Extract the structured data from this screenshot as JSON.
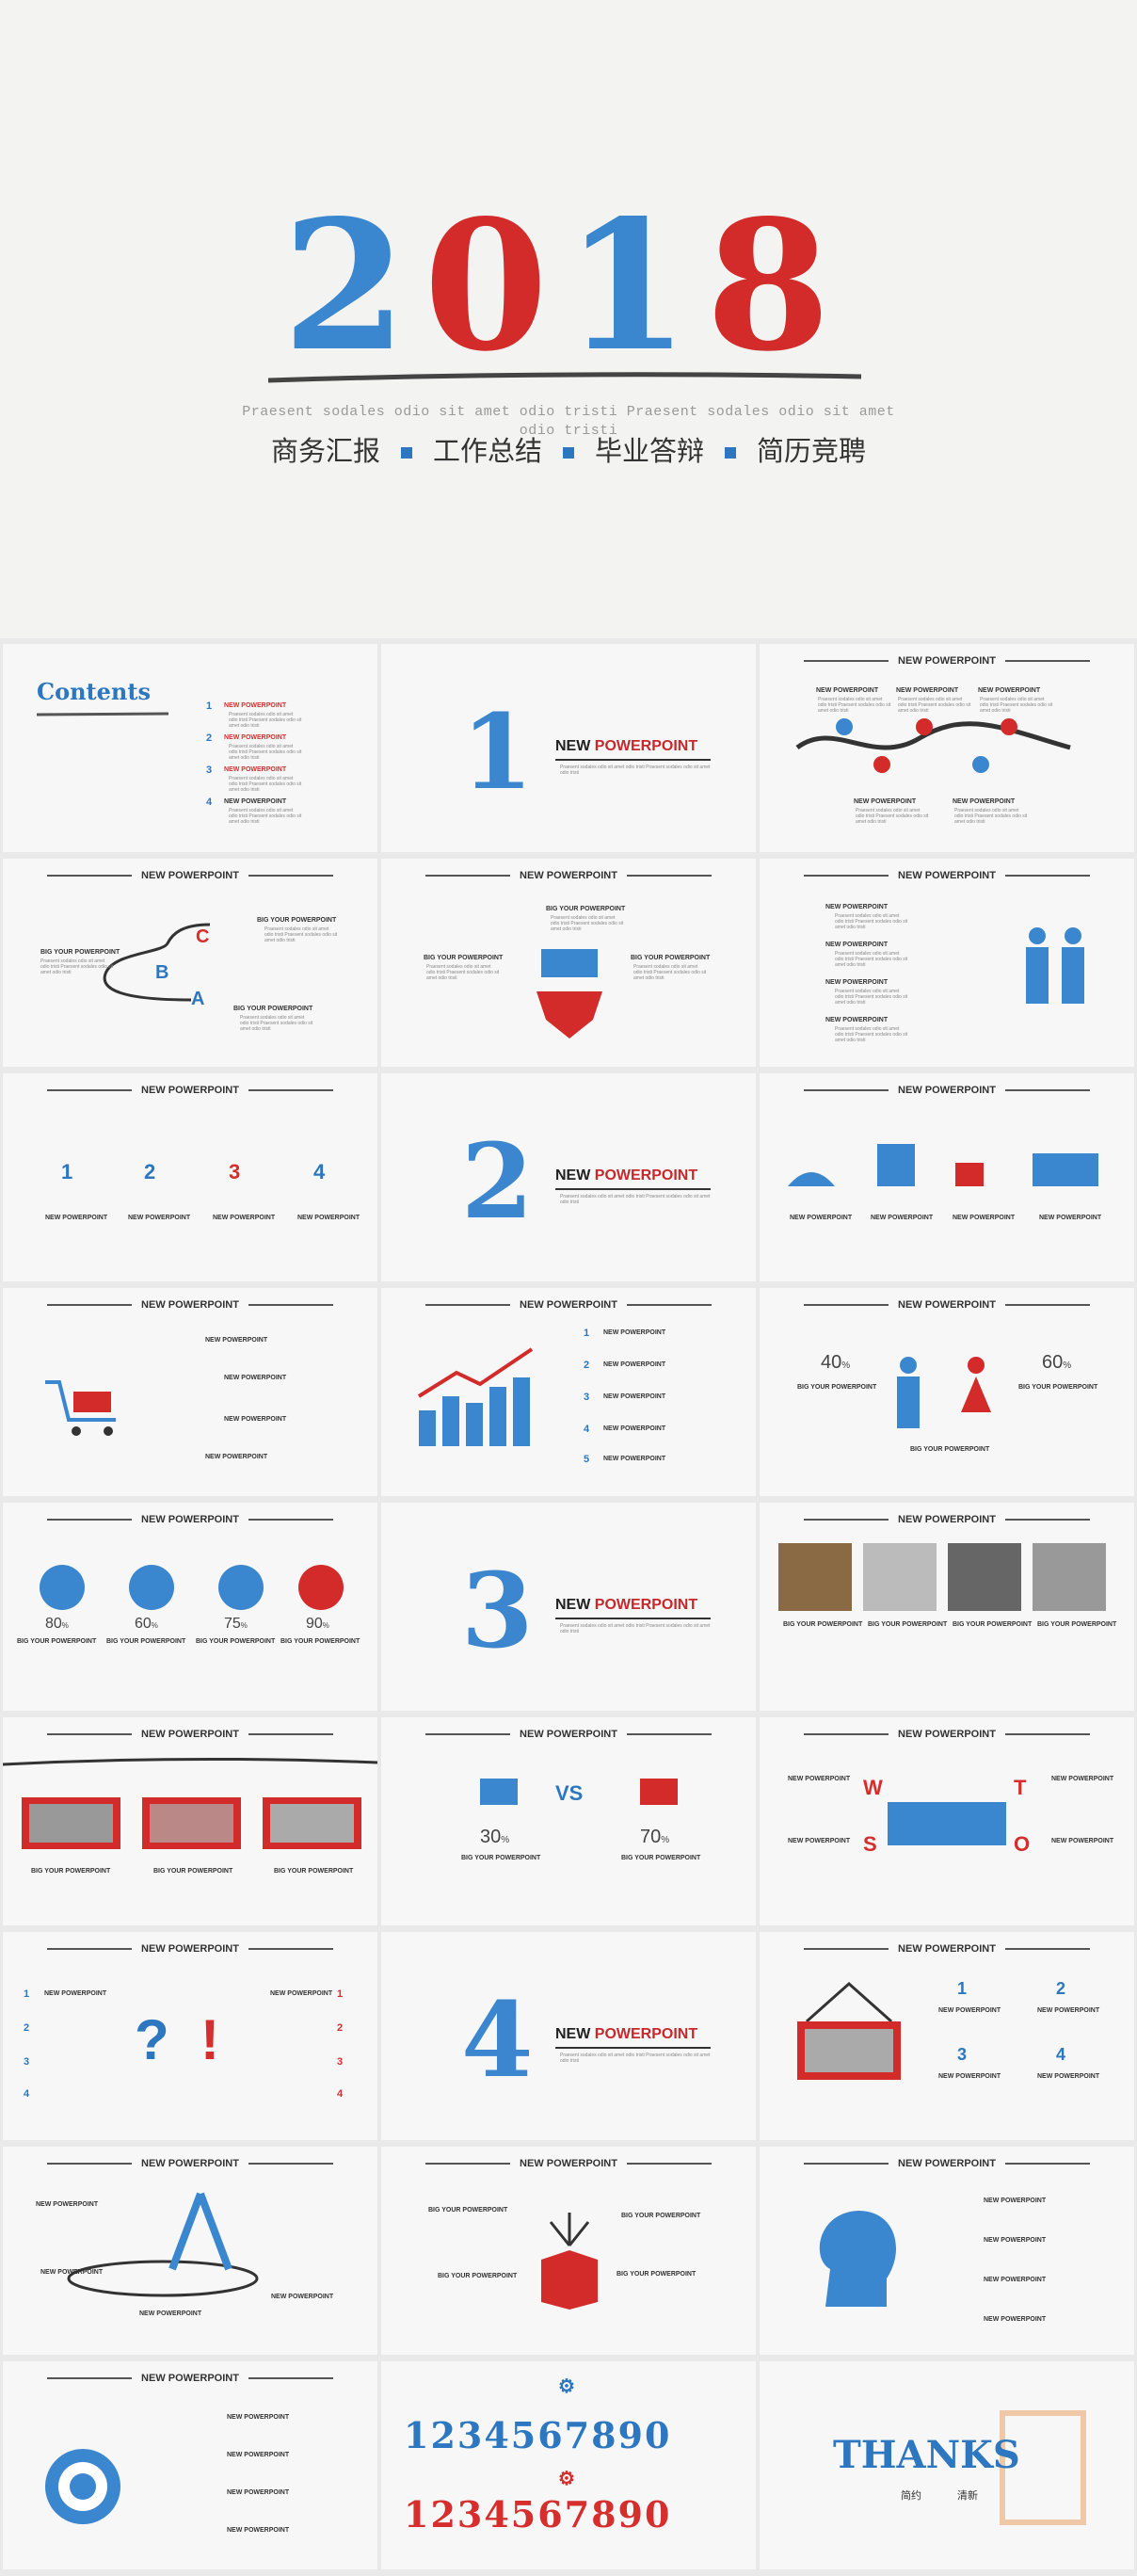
{
  "hero": {
    "year": "2018",
    "subtitle_line1": "Praesent sodales odio sit amet odio tristi Praesent sodales odio sit amet",
    "subtitle_line2": "odio tristi",
    "tags": [
      "商务汇报",
      "工作总结",
      "毕业答辩",
      "简历竞聘"
    ]
  },
  "common": {
    "header": "NEW POWERPOINT",
    "item": "NEW POWERPOINT",
    "big_item": "BIG YOUR POWERPOINT",
    "lorem": "Praesent sodales odio sit amet odio tristi Praesent sodales odio sit amet odio tristi",
    "section_word_a": "NEW ",
    "section_word_b": "POWERPOINT"
  },
  "contents": {
    "title": "Contents",
    "items": [
      "1",
      "2",
      "3",
      "4"
    ]
  },
  "sections": [
    "1",
    "2",
    "3",
    "4"
  ],
  "abc": [
    "A",
    "B",
    "C"
  ],
  "trophies": [
    "1",
    "2",
    "3",
    "4"
  ],
  "numbered": [
    "1",
    "2",
    "3",
    "4",
    "5"
  ],
  "gender": {
    "left": "40",
    "right": "60",
    "unit": "%"
  },
  "balls": [
    {
      "value": "80",
      "unit": "%"
    },
    {
      "value": "60",
      "unit": "%"
    },
    {
      "value": "75",
      "unit": "%"
    },
    {
      "value": "90",
      "unit": "%"
    }
  ],
  "versus": {
    "vs": "VS",
    "left": "30",
    "right": "70",
    "unit": "%"
  },
  "swot": [
    "W",
    "T",
    "S",
    "O"
  ],
  "qa_nums": [
    "1",
    "2",
    "3",
    "4"
  ],
  "pair_nums": [
    "1",
    "2",
    "3",
    "4"
  ],
  "digits_blue": "1234567890",
  "digits_red": "1234567890",
  "thanks": {
    "word": "THANKS",
    "left": "简约",
    "right": "清新"
  },
  "colors": {
    "blue": "#2c77c0",
    "red": "#d62d2d"
  }
}
